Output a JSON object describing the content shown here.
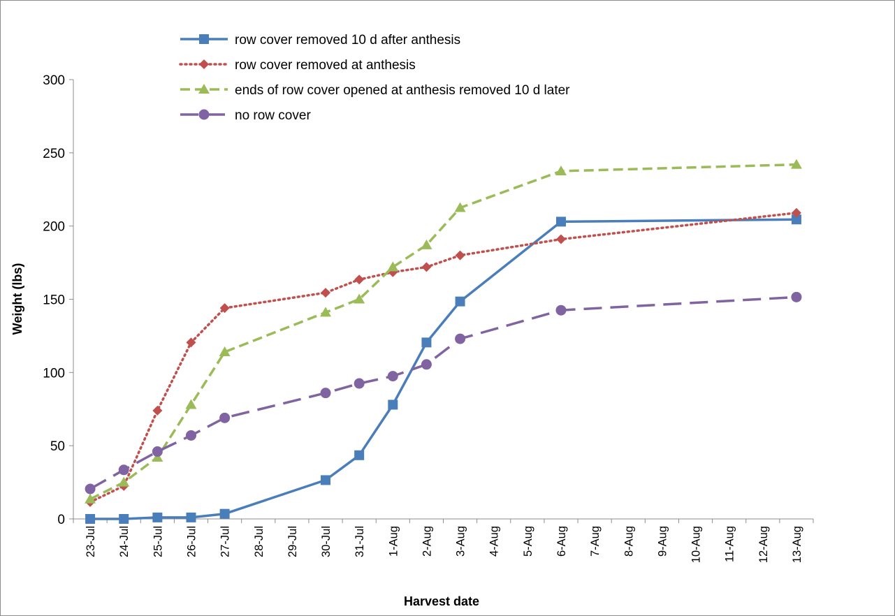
{
  "chart_data": {
    "type": "line",
    "title": "",
    "xlabel": "Harvest date",
    "ylabel": "Weight (lbs)",
    "ylim": [
      0,
      300
    ],
    "yticks": [
      0,
      50,
      100,
      150,
      200,
      250,
      300
    ],
    "grid": false,
    "legend_position": "top",
    "categories": [
      "23-Jul",
      "24-Jul",
      "25-Jul",
      "26-Jul",
      "27-Jul",
      "28-Jul",
      "29-Jul",
      "30-Jul",
      "31-Jul",
      "1-Aug",
      "2-Aug",
      "3-Aug",
      "4-Aug",
      "5-Aug",
      "6-Aug",
      "7-Aug",
      "8-Aug",
      "9-Aug",
      "10-Aug",
      "11-Aug",
      "12-Aug",
      "13-Aug"
    ],
    "series": [
      {
        "name": "row cover removed 10 d after anthesis",
        "color": "#4a7ebb",
        "line_style": "solid",
        "marker": "square",
        "values": [
          0,
          0,
          1,
          1,
          3.5,
          null,
          null,
          26.5,
          43.5,
          78,
          120.5,
          148.5,
          null,
          null,
          203,
          null,
          null,
          null,
          null,
          null,
          null,
          204.5
        ]
      },
      {
        "name": "row cover removed at anthesis",
        "color": "#c0504d",
        "line_style": "dotted",
        "marker": "diamond",
        "values": [
          11.5,
          22.5,
          74,
          120.5,
          144,
          null,
          null,
          154.5,
          163.5,
          168.5,
          172,
          180,
          null,
          null,
          191,
          null,
          null,
          null,
          null,
          null,
          null,
          209
        ]
      },
      {
        "name": "ends of row cover opened at anthesis removed 10 d later",
        "color": "#9bbb59",
        "line_style": "dashed",
        "marker": "triangle",
        "values": [
          13.5,
          25,
          42,
          78,
          114,
          null,
          null,
          141,
          150,
          172,
          187,
          212.5,
          null,
          null,
          237.5,
          null,
          null,
          null,
          null,
          null,
          null,
          242
        ]
      },
      {
        "name": "no row cover",
        "color": "#8064a2",
        "line_style": "long-dash",
        "marker": "circle",
        "values": [
          20.5,
          33.5,
          46,
          57,
          69,
          null,
          null,
          86,
          92.5,
          97.5,
          105.5,
          123,
          null,
          null,
          142.5,
          null,
          null,
          null,
          null,
          null,
          null,
          151.5
        ]
      }
    ]
  }
}
